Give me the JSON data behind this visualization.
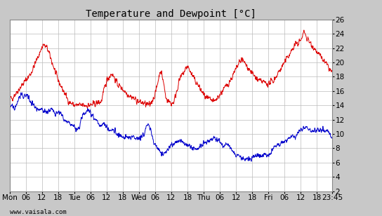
{
  "title": "Temperature and Dewpoint [°C]",
  "ylim": [
    2,
    26
  ],
  "yticks": [
    2,
    4,
    6,
    8,
    10,
    12,
    14,
    16,
    18,
    20,
    22,
    24,
    26
  ],
  "watermark": "www.vaisala.com",
  "bg_color": "#c8c8c8",
  "plot_bg_color": "#ffffff",
  "temp_color": "#dd0000",
  "dewp_color": "#0000cc",
  "line_width": 0.7,
  "title_fontsize": 10,
  "tick_fontsize": 7.5
}
